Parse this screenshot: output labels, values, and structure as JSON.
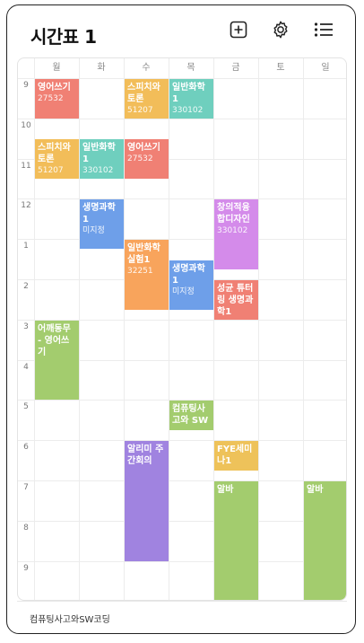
{
  "header": {
    "title": "시간표 1",
    "icons": [
      "add-icon",
      "gear-icon",
      "list-icon"
    ]
  },
  "days": [
    "월",
    "화",
    "수",
    "목",
    "금",
    "토",
    "일"
  ],
  "hours": [
    "9",
    "10",
    "11",
    "12",
    "1",
    "2",
    "3",
    "4",
    "5",
    "6",
    "7",
    "8",
    "9"
  ],
  "colors": {
    "red": "#F08074",
    "yellow": "#F2BD59",
    "teal": "#6FCFBE",
    "blue": "#6E9FE9",
    "purple": "#D48BEA",
    "orange": "#F8A45C",
    "green": "#A3CC6E",
    "violet": "#A083E0",
    "gold": "#EEC25A"
  },
  "courses": [
    {
      "name": "영어쓰기",
      "sub": "27532",
      "day": 0,
      "start": 9.0,
      "end": 10.0,
      "color": "#F08074"
    },
    {
      "name": "스피치와 토론",
      "sub": "51207",
      "day": 2,
      "start": 9.0,
      "end": 10.0,
      "color": "#F2BD59"
    },
    {
      "name": "일반화학 1",
      "sub": "330102",
      "day": 3,
      "start": 9.0,
      "end": 10.0,
      "color": "#6FCFBE"
    },
    {
      "name": "스피치와 토론",
      "sub": "51207",
      "day": 0,
      "start": 10.5,
      "end": 11.5,
      "color": "#F2BD59"
    },
    {
      "name": "일반화학 1",
      "sub": "330102",
      "day": 1,
      "start": 10.5,
      "end": 11.5,
      "color": "#6FCFBE"
    },
    {
      "name": "영어쓰기",
      "sub": "27532",
      "day": 2,
      "start": 10.5,
      "end": 11.5,
      "color": "#F08074"
    },
    {
      "name": "생명과학 1",
      "sub": "미지정",
      "day": 1,
      "start": 12.0,
      "end": 13.25,
      "color": "#6E9FE9"
    },
    {
      "name": "창의적융합디자인",
      "sub": "330102",
      "day": 4,
      "start": 12.0,
      "end": 13.75,
      "color": "#D48BEA"
    },
    {
      "name": "일반화학실험1",
      "sub": "32251",
      "day": 2,
      "start": 13.0,
      "end": 14.75,
      "color": "#F8A45C"
    },
    {
      "name": "생명과학 1",
      "sub": "미지정",
      "day": 3,
      "start": 13.5,
      "end": 14.75,
      "color": "#6E9FE9"
    },
    {
      "name": "성균 튜터링 생명과학1",
      "sub": "",
      "day": 4,
      "start": 14.0,
      "end": 15.0,
      "color": "#F08074"
    },
    {
      "name": "어깨동무 - 영어쓰기",
      "sub": "",
      "day": 0,
      "start": 15.0,
      "end": 17.0,
      "color": "#A3CC6E"
    },
    {
      "name": "컴퓨팅사고와 SW",
      "sub": "",
      "day": 3,
      "start": 17.0,
      "end": 17.75,
      "color": "#A3CC6E"
    },
    {
      "name": "알리미 주간회의",
      "sub": "",
      "day": 2,
      "start": 18.0,
      "end": 21.0,
      "color": "#A083E0"
    },
    {
      "name": "FYE세미나1",
      "sub": "",
      "day": 4,
      "start": 18.0,
      "end": 18.75,
      "color": "#EEC25A"
    },
    {
      "name": "알바",
      "sub": "",
      "day": 4,
      "start": 19.0,
      "end": 22.0,
      "color": "#A3CC6E"
    },
    {
      "name": "알바",
      "sub": "",
      "day": 6,
      "start": 19.0,
      "end": 22.0,
      "color": "#A3CC6E"
    }
  ],
  "footer": {
    "text": "컴퓨팅사고와SW코딩"
  }
}
